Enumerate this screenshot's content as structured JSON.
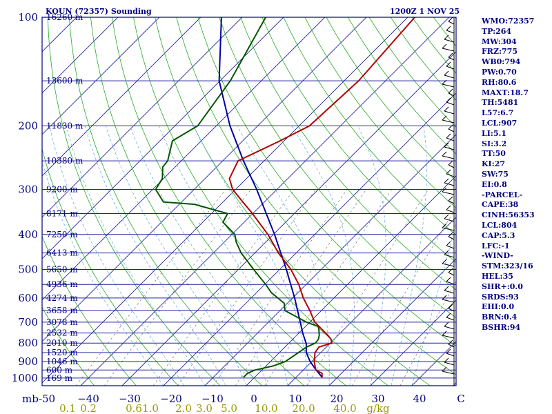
{
  "chart_data": {
    "type": "skew-t",
    "title_left": "KOUN (72357) Sounding",
    "title_right": "1200Z  1 NOV 25",
    "pressure_axis_label": "mb",
    "pressure_ticks": [
      100,
      200,
      300,
      400,
      500,
      600,
      700,
      800,
      900,
      1000
    ],
    "height_labels": [
      {
        "p": 100,
        "label": "16260 m"
      },
      {
        "p": 150,
        "label": "13600 m"
      },
      {
        "p": 200,
        "label": "11830 m"
      },
      {
        "p": 250,
        "label": "10380 m"
      },
      {
        "p": 300,
        "label": "9200 m"
      },
      {
        "p": 350,
        "label": "8171 m"
      },
      {
        "p": 400,
        "label": "7250 m"
      },
      {
        "p": 450,
        "label": "6413 m"
      },
      {
        "p": 500,
        "label": "5650 m"
      },
      {
        "p": 550,
        "label": "4936 m"
      },
      {
        "p": 600,
        "label": "4274 m"
      },
      {
        "p": 650,
        "label": "3658 m"
      },
      {
        "p": 700,
        "label": "3078 m"
      },
      {
        "p": 750,
        "label": "2532 m"
      },
      {
        "p": 800,
        "label": "2010 m"
      },
      {
        "p": 850,
        "label": "1520 m"
      },
      {
        "p": 900,
        "label": "1046 m"
      },
      {
        "p": 950,
        "label": "600 m"
      },
      {
        "p": 1000,
        "label": "169 m"
      }
    ],
    "temp_ticks": [
      {
        "v": -50,
        "label": "-50"
      },
      {
        "v": -40,
        "label": "−40"
      },
      {
        "v": -30,
        "label": "−30"
      },
      {
        "v": -20,
        "label": "−20"
      },
      {
        "v": -10,
        "label": "−10"
      },
      {
        "v": 0,
        "label": "0"
      },
      {
        "v": 10,
        "label": "10"
      },
      {
        "v": 20,
        "label": "20"
      },
      {
        "v": 30,
        "label": "30"
      },
      {
        "v": 40,
        "label": "40"
      },
      {
        "v": 50,
        "label": "C"
      }
    ],
    "mixing_ratio_ticks": [
      {
        "label": "0.1",
        "x": -45
      },
      {
        "label": "0.2",
        "x": -40
      },
      {
        "label": "0.6",
        "x": -29
      },
      {
        "label": "1.0",
        "x": -25
      },
      {
        "label": "2.0",
        "x": -17
      },
      {
        "label": "3.0",
        "x": -12
      },
      {
        "label": "5.0",
        "x": -6
      },
      {
        "label": "10.0",
        "x": 3
      },
      {
        "label": "20.0",
        "x": 12
      },
      {
        "label": "40.0",
        "x": 22
      },
      {
        "label": "g/kg",
        "x": 30
      }
    ],
    "temperature": [
      [
        995,
        16.3
      ],
      [
        970,
        15.3
      ],
      [
        950,
        13
      ],
      [
        925,
        11.8
      ],
      [
        900,
        10.6
      ],
      [
        850,
        8.6
      ],
      [
        820,
        8.2
      ],
      [
        800,
        10.4
      ],
      [
        780,
        9.2
      ],
      [
        760,
        7.4
      ],
      [
        700,
        1.2
      ],
      [
        650,
        -2.8
      ],
      [
        600,
        -7.4
      ],
      [
        550,
        -11.8
      ],
      [
        500,
        -17.3
      ],
      [
        450,
        -24.3
      ],
      [
        400,
        -31.3
      ],
      [
        350,
        -40.1
      ],
      [
        320,
        -46.3
      ],
      [
        300,
        -50.7
      ],
      [
        280,
        -54.1
      ],
      [
        250,
        -56.3
      ],
      [
        220,
        -51
      ],
      [
        200,
        -47.5
      ],
      [
        150,
        -46.5
      ],
      [
        100,
        -48.3
      ]
    ],
    "dewpoint": [
      [
        995,
        -2.7
      ],
      [
        970,
        -2.7
      ],
      [
        950,
        -1.7
      ],
      [
        925,
        1.8
      ],
      [
        900,
        3.6
      ],
      [
        850,
        4.6
      ],
      [
        820,
        5.2
      ],
      [
        800,
        6.4
      ],
      [
        780,
        6.2
      ],
      [
        760,
        5.4
      ],
      [
        720,
        3.2
      ],
      [
        700,
        -0.8
      ],
      [
        650,
        -8.8
      ],
      [
        620,
        -10.8
      ],
      [
        580,
        -16.4
      ],
      [
        550,
        -19.8
      ],
      [
        500,
        -26.3
      ],
      [
        450,
        -33.3
      ],
      [
        420,
        -37.1
      ],
      [
        400,
        -39.3
      ],
      [
        370,
        -45.1
      ],
      [
        350,
        -46.1
      ],
      [
        330,
        -56.3
      ],
      [
        325,
        -64.4
      ],
      [
        300,
        -69.3
      ],
      [
        280,
        -70.3
      ],
      [
        260,
        -73
      ],
      [
        250,
        -73.3
      ],
      [
        220,
        -77
      ],
      [
        200,
        -74.5
      ],
      [
        150,
        -77.5
      ],
      [
        100,
        -84.3
      ]
    ],
    "parcel": [
      [
        995,
        16.3
      ],
      [
        950,
        13.1
      ],
      [
        900,
        9.6
      ],
      [
        850,
        6.5
      ],
      [
        804,
        4.4
      ],
      [
        750,
        0.9
      ],
      [
        700,
        -2.3
      ],
      [
        600,
        -9.5
      ],
      [
        500,
        -18.4
      ],
      [
        400,
        -29.7
      ],
      [
        300,
        -44.9
      ],
      [
        250,
        -55
      ],
      [
        200,
        -66.7
      ],
      [
        150,
        -80.2
      ],
      [
        100,
        -95
      ]
    ],
    "indices": [
      "WMO:72357",
      "TP:264",
      "MW:304",
      "FRZ:775",
      "WB0:794",
      "PW:0.70",
      "RH:80.6",
      "MAXT:18.7",
      "TH:5481",
      "L57:6.7",
      "LCL:907",
      "LI:5.1",
      "SI:3.2",
      "TT:50",
      "KI:27",
      "SW:75",
      "EI:0.8",
      "-PARCEL-",
      "CAPE:38",
      "CINH:56353",
      "LCL:804",
      "CAP:5.3",
      "LFC:-1",
      "-WIND-",
      "STM:323/16",
      "HEL:35",
      "SHR+:0.0",
      "SRDS:93",
      "EHI:0.0",
      "BRN:0.4",
      "BSHR:94"
    ],
    "colors": {
      "isobar": "#2020a0",
      "isotherm": "#2020a0",
      "dry_adiabat": "#22aa22",
      "moist_adiabat": "#70b0e0",
      "mixing_ratio": "#888888",
      "temperature": "#b00000",
      "dewpoint": "#005500",
      "parcel": "#0000a0"
    }
  }
}
